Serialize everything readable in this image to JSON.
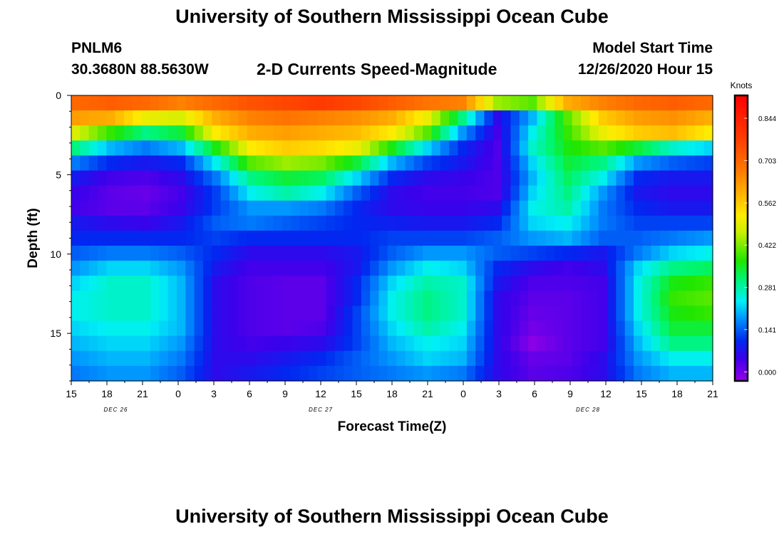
{
  "page": {
    "title_top": "University of Southern Mississippi Ocean Cube",
    "title_bottom": "University of Southern Mississippi Ocean Cube",
    "station_id": "PNLM6",
    "station_coords": "30.3680N 88.5630W",
    "chart_title": "2-D Currents Speed-Magnitude",
    "model_start_label": "Model Start Time",
    "model_start_value": "12/26/2020 Hour 15",
    "colorbar_unit": "Knots"
  },
  "chart_data": {
    "type": "heatmap",
    "title": "2-D Currents Speed-Magnitude",
    "xlabel": "Forecast Time(Z)",
    "ylabel": "Depth (ft)",
    "x_ticks": [
      "15",
      "18",
      "21",
      "0",
      "3",
      "6",
      "9",
      "12",
      "15",
      "18",
      "21",
      "0",
      "3",
      "6",
      "9",
      "12",
      "15",
      "18",
      "21"
    ],
    "date_labels": [
      {
        "text": "DEC 26",
        "tick_index": 1.25
      },
      {
        "text": "DEC 27",
        "tick_index": 7
      },
      {
        "text": "DEC 28",
        "tick_index": 14.5
      }
    ],
    "y_ticks": [
      0,
      5,
      10,
      15
    ],
    "ylim": [
      0,
      18
    ],
    "y_inverted": true,
    "x_hours_range": [
      0,
      54
    ],
    "colorbar": {
      "label": "Knots",
      "ticks": [
        "0.000",
        "0.141",
        "0.281",
        "0.422",
        "0.562",
        "0.703",
        "0.844"
      ],
      "tick_values": [
        0.0,
        0.141,
        0.281,
        0.422,
        0.562,
        0.703,
        0.844
      ],
      "range": [
        -0.03,
        0.92
      ]
    },
    "depth_levels_ft": [
      0,
      1,
      2,
      3,
      4,
      5,
      6,
      7,
      8,
      9,
      10,
      11,
      12,
      13,
      14,
      15,
      16,
      17,
      18
    ],
    "time_hours": [
      0,
      3,
      6,
      9,
      12,
      15,
      18,
      21,
      24,
      27,
      30,
      33,
      36,
      39,
      42,
      45,
      48,
      51,
      54
    ],
    "values": [
      [
        0.7,
        0.72,
        0.7,
        0.66,
        0.7,
        0.74,
        0.76,
        0.78,
        0.76,
        0.72,
        0.68,
        0.66,
        0.44,
        0.4,
        0.6,
        0.66,
        0.7,
        0.72,
        0.7
      ],
      [
        0.62,
        0.6,
        0.5,
        0.48,
        0.6,
        0.66,
        0.68,
        0.66,
        0.64,
        0.6,
        0.5,
        0.3,
        0.06,
        0.2,
        0.4,
        0.56,
        0.62,
        0.64,
        0.6
      ],
      [
        0.48,
        0.38,
        0.3,
        0.34,
        0.52,
        0.6,
        0.62,
        0.6,
        0.58,
        0.52,
        0.4,
        0.18,
        0.04,
        0.24,
        0.38,
        0.5,
        0.56,
        0.58,
        0.52
      ],
      [
        0.3,
        0.2,
        0.16,
        0.2,
        0.36,
        0.52,
        0.56,
        0.54,
        0.5,
        0.36,
        0.22,
        0.1,
        0.03,
        0.26,
        0.36,
        0.4,
        0.34,
        0.26,
        0.22
      ],
      [
        0.16,
        0.1,
        0.08,
        0.1,
        0.24,
        0.4,
        0.44,
        0.42,
        0.34,
        0.2,
        0.12,
        0.08,
        0.03,
        0.22,
        0.34,
        0.3,
        0.18,
        0.14,
        0.12
      ],
      [
        0.08,
        0.04,
        0.03,
        0.06,
        0.16,
        0.3,
        0.34,
        0.32,
        0.22,
        0.1,
        0.06,
        0.05,
        0.03,
        0.2,
        0.32,
        0.24,
        0.1,
        0.08,
        0.08
      ],
      [
        0.05,
        0.02,
        0.01,
        0.04,
        0.12,
        0.24,
        0.28,
        0.24,
        0.14,
        0.06,
        0.04,
        0.04,
        0.03,
        0.22,
        0.3,
        0.18,
        0.08,
        0.06,
        0.06
      ],
      [
        0.04,
        0.02,
        0.02,
        0.05,
        0.12,
        0.18,
        0.18,
        0.16,
        0.1,
        0.06,
        0.05,
        0.05,
        0.06,
        0.24,
        0.28,
        0.16,
        0.1,
        0.08,
        0.08
      ],
      [
        0.08,
        0.06,
        0.05,
        0.08,
        0.14,
        0.16,
        0.14,
        0.12,
        0.1,
        0.09,
        0.08,
        0.08,
        0.1,
        0.22,
        0.24,
        0.16,
        0.12,
        0.12,
        0.12
      ],
      [
        0.1,
        0.1,
        0.1,
        0.1,
        0.12,
        0.1,
        0.1,
        0.1,
        0.1,
        0.12,
        0.12,
        0.12,
        0.14,
        0.18,
        0.2,
        0.14,
        0.14,
        0.16,
        0.18
      ],
      [
        0.14,
        0.16,
        0.16,
        0.14,
        0.1,
        0.06,
        0.06,
        0.06,
        0.08,
        0.14,
        0.18,
        0.18,
        0.14,
        0.12,
        0.1,
        0.08,
        0.16,
        0.22,
        0.24
      ],
      [
        0.18,
        0.22,
        0.22,
        0.18,
        0.08,
        0.04,
        0.04,
        0.04,
        0.08,
        0.18,
        0.24,
        0.22,
        0.1,
        0.06,
        0.04,
        0.06,
        0.22,
        0.3,
        0.32
      ],
      [
        0.22,
        0.26,
        0.26,
        0.2,
        0.06,
        0.03,
        0.02,
        0.02,
        0.1,
        0.22,
        0.28,
        0.26,
        0.08,
        0.03,
        0.03,
        0.04,
        0.24,
        0.36,
        0.38
      ],
      [
        0.24,
        0.26,
        0.26,
        0.2,
        0.06,
        0.03,
        0.02,
        0.02,
        0.1,
        0.24,
        0.3,
        0.26,
        0.06,
        0.02,
        0.02,
        0.04,
        0.24,
        0.38,
        0.4
      ],
      [
        0.24,
        0.26,
        0.26,
        0.2,
        0.06,
        0.03,
        0.02,
        0.02,
        0.12,
        0.24,
        0.3,
        0.26,
        0.06,
        0.01,
        0.02,
        0.04,
        0.24,
        0.36,
        0.38
      ],
      [
        0.22,
        0.24,
        0.24,
        0.2,
        0.06,
        0.03,
        0.02,
        0.03,
        0.12,
        0.22,
        0.28,
        0.24,
        0.06,
        0.0,
        0.02,
        0.04,
        0.22,
        0.34,
        0.34
      ],
      [
        0.2,
        0.22,
        0.22,
        0.18,
        0.06,
        0.04,
        0.05,
        0.06,
        0.12,
        0.2,
        0.24,
        0.22,
        0.06,
        -0.02,
        0.02,
        0.04,
        0.2,
        0.3,
        0.3
      ],
      [
        0.18,
        0.2,
        0.2,
        0.16,
        0.06,
        0.06,
        0.08,
        0.1,
        0.14,
        0.18,
        0.22,
        0.2,
        0.06,
        0.01,
        0.02,
        0.06,
        0.18,
        0.24,
        0.24
      ],
      [
        0.16,
        0.18,
        0.18,
        0.14,
        0.06,
        0.08,
        0.1,
        0.12,
        0.14,
        0.16,
        0.18,
        0.16,
        0.06,
        0.02,
        0.03,
        0.06,
        0.16,
        0.2,
        0.2
      ]
    ]
  }
}
